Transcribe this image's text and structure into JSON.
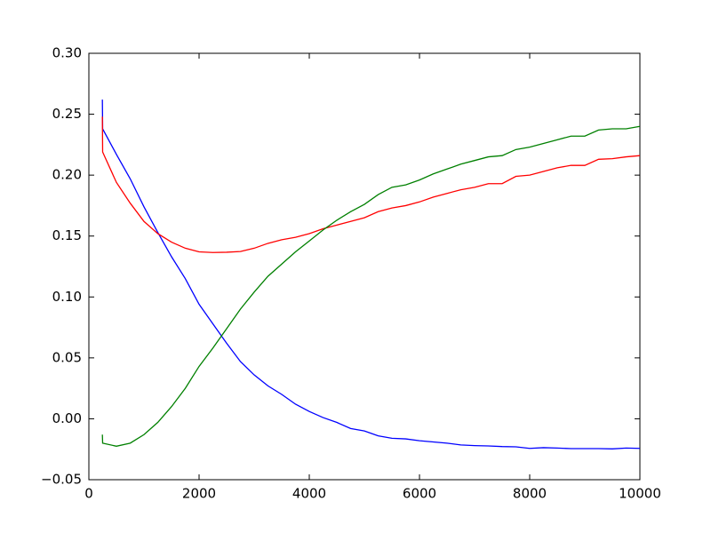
{
  "chart_data": {
    "type": "line",
    "x": [
      245,
      250,
      500,
      750,
      1000,
      1250,
      1500,
      1750,
      2000,
      2250,
      2500,
      2750,
      3000,
      3250,
      3500,
      3750,
      4000,
      4250,
      4500,
      4750,
      5000,
      5250,
      5500,
      5750,
      6000,
      6250,
      6500,
      6750,
      7000,
      7250,
      7500,
      7750,
      8000,
      8250,
      8500,
      8750,
      9000,
      9250,
      9500,
      9750,
      10000
    ],
    "series": [
      {
        "color": "#0000ff",
        "values": [
          0.262,
          0.238,
          0.217,
          0.197,
          0.174,
          0.153,
          0.133,
          0.115,
          0.094,
          0.078,
          0.062,
          0.047,
          0.036,
          0.027,
          0.02,
          0.012,
          0.006,
          0.001,
          -0.003,
          -0.008,
          -0.01,
          -0.014,
          -0.016,
          -0.0165,
          -0.018,
          -0.019,
          -0.02,
          -0.0215,
          -0.022,
          -0.0223,
          -0.0228,
          -0.023,
          -0.0243,
          -0.0237,
          -0.024,
          -0.0245,
          -0.0245,
          -0.0245,
          -0.0247,
          -0.024,
          -0.0243
        ]
      },
      {
        "color": "#ff0000",
        "values": [
          0.248,
          0.219,
          0.194,
          0.177,
          0.162,
          0.152,
          0.145,
          0.14,
          0.137,
          0.1365,
          0.1367,
          0.1373,
          0.14,
          0.144,
          0.147,
          0.149,
          0.152,
          0.156,
          0.159,
          0.162,
          0.165,
          0.17,
          0.173,
          0.175,
          0.178,
          0.182,
          0.185,
          0.188,
          0.19,
          0.193,
          0.193,
          0.199,
          0.2,
          0.203,
          0.206,
          0.208,
          0.208,
          0.213,
          0.2135,
          0.215,
          0.216
        ]
      },
      {
        "color": "#008000",
        "values": [
          -0.013,
          -0.02,
          -0.0225,
          -0.02,
          -0.013,
          -0.003,
          0.01,
          0.025,
          0.043,
          0.058,
          0.074,
          0.09,
          0.104,
          0.117,
          0.127,
          0.137,
          0.146,
          0.155,
          0.163,
          0.17,
          0.176,
          0.184,
          0.19,
          0.192,
          0.196,
          0.201,
          0.205,
          0.209,
          0.212,
          0.215,
          0.216,
          0.221,
          0.223,
          0.226,
          0.229,
          0.232,
          0.232,
          0.237,
          0.238,
          0.238,
          0.24
        ]
      }
    ],
    "xlim": [
      0,
      10000
    ],
    "xticks": [
      0,
      2000,
      4000,
      6000,
      8000,
      10000
    ],
    "ylim": [
      -0.05,
      0.3
    ],
    "yticks": [
      {
        "value": -0.05,
        "label": "−0.05"
      },
      {
        "value": 0.0,
        "label": "0.00"
      },
      {
        "value": 0.05,
        "label": "0.05"
      },
      {
        "value": 0.1,
        "label": "0.10"
      },
      {
        "value": 0.15,
        "label": "0.15"
      },
      {
        "value": 0.2,
        "label": "0.20"
      },
      {
        "value": 0.25,
        "label": "0.25"
      },
      {
        "value": 0.3,
        "label": "0.30"
      }
    ],
    "grid": false
  }
}
